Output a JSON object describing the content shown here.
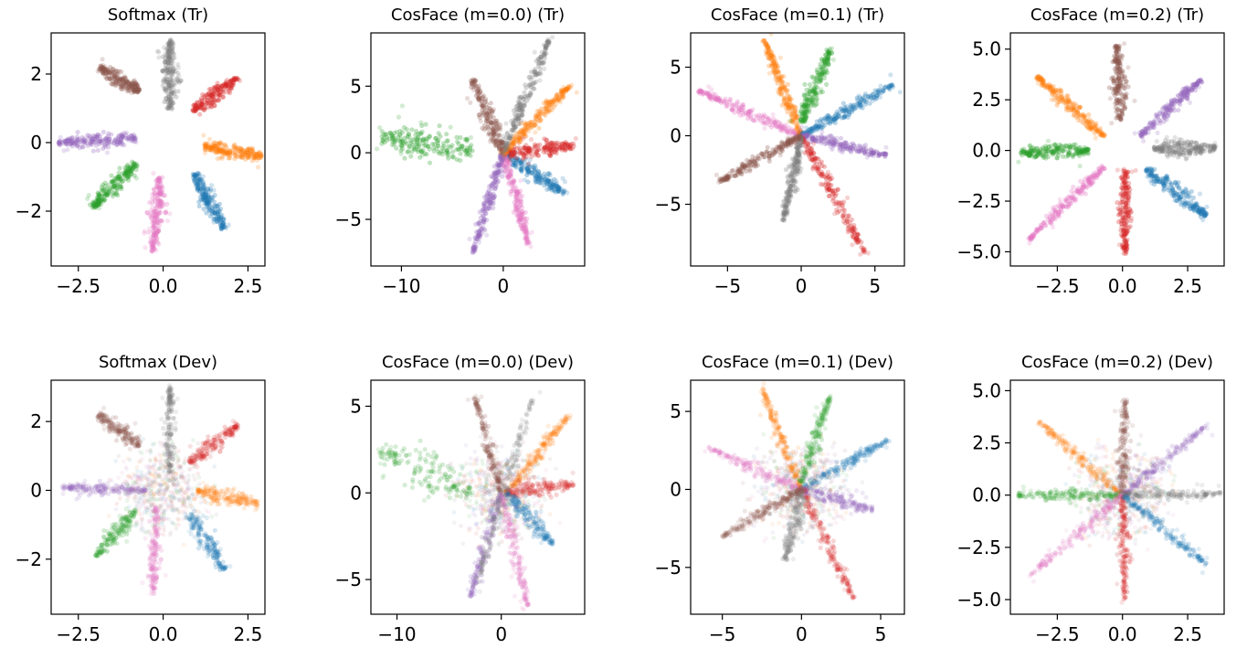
{
  "chart_data": [
    {
      "type": "scatter",
      "title": "Softmax (Tr)",
      "xlim": [
        -3.3,
        3.0
      ],
      "ylim": [
        -3.6,
        3.2
      ],
      "xticks": [
        -2.5,
        0.0,
        2.5
      ],
      "xtick_labels": [
        "−2.5",
        "0.0",
        "2.5"
      ],
      "yticks": [
        -2,
        0,
        2
      ],
      "ytick_labels": [
        "−2",
        "0",
        "2"
      ],
      "grid": false,
      "series": [
        {
          "color": "#1f77b4",
          "values": [
            [
              0.9,
              -0.9
            ],
            [
              1.8,
              -2.5
            ]
          ]
        },
        {
          "color": "#ff7f0e",
          "values": [
            [
              1.2,
              -0.1
            ],
            [
              2.9,
              -0.4
            ]
          ]
        },
        {
          "color": "#2ca02c",
          "values": [
            [
              -0.8,
              -0.6
            ],
            [
              -2.1,
              -1.9
            ]
          ]
        },
        {
          "color": "#d62728",
          "values": [
            [
              0.9,
              0.9
            ],
            [
              2.2,
              1.9
            ]
          ]
        },
        {
          "color": "#9467bd",
          "values": [
            [
              -0.8,
              0.1
            ],
            [
              -3.1,
              0.0
            ]
          ]
        },
        {
          "color": "#8c564b",
          "values": [
            [
              -0.7,
              1.5
            ],
            [
              -1.9,
              2.2
            ]
          ]
        },
        {
          "color": "#e377c2",
          "values": [
            [
              -0.1,
              -1.0
            ],
            [
              -0.3,
              -3.2
            ]
          ]
        },
        {
          "color": "#7f7f7f",
          "values": [
            [
              0.2,
              1.0
            ],
            [
              0.2,
              3.0
            ]
          ]
        }
      ]
    },
    {
      "type": "scatter",
      "title": "CosFace (m=0.0) (Tr)",
      "xlim": [
        -13.0,
        8.0
      ],
      "ylim": [
        -8.5,
        9.0
      ],
      "xticks": [
        -10,
        0
      ],
      "xtick_labels": [
        "−10",
        "0"
      ],
      "yticks": [
        -5,
        0,
        5
      ],
      "ytick_labels": [
        "−5",
        "0",
        "5"
      ],
      "grid": false,
      "series": [
        {
          "color": "#2ca02c",
          "values": [
            [
              -3.0,
              0.3
            ],
            [
              -12.0,
              1.2
            ]
          ]
        },
        {
          "color": "#1f77b4",
          "values": [
            [
              0.0,
              0.0
            ],
            [
              6.0,
              -3.0
            ]
          ]
        },
        {
          "color": "#e377c2",
          "values": [
            [
              0.0,
              0.0
            ],
            [
              2.5,
              -6.8
            ]
          ]
        },
        {
          "color": "#9467bd",
          "values": [
            [
              0.0,
              0.0
            ],
            [
              -3.0,
              -7.5
            ]
          ]
        },
        {
          "color": "#8c564b",
          "values": [
            [
              0.0,
              0.0
            ],
            [
              -3.0,
              5.5
            ]
          ]
        },
        {
          "color": "#d62728",
          "values": [
            [
              0.0,
              0.0
            ],
            [
              7.0,
              0.5
            ]
          ]
        },
        {
          "color": "#ff7f0e",
          "values": [
            [
              0.0,
              0.0
            ],
            [
              6.5,
              5.0
            ]
          ]
        },
        {
          "color": "#7f7f7f",
          "values": [
            [
              0.0,
              0.0
            ],
            [
              4.5,
              8.5
            ]
          ]
        }
      ]
    },
    {
      "type": "scatter",
      "title": "CosFace (m=0.1) (Tr)",
      "xlim": [
        -7.5,
        7.0
      ],
      "ylim": [
        -9.5,
        7.5
      ],
      "xticks": [
        -5,
        0,
        5
      ],
      "xtick_labels": [
        "−5",
        "0",
        "5"
      ],
      "yticks": [
        -5,
        0,
        5
      ],
      "ytick_labels": [
        "−5",
        "0",
        "5"
      ],
      "grid": false,
      "series": [
        {
          "color": "#e377c2",
          "values": [
            [
              0.0,
              0.0
            ],
            [
              -7.0,
              3.3
            ]
          ]
        },
        {
          "color": "#ff7f0e",
          "values": [
            [
              0.0,
              0.0
            ],
            [
              -2.5,
              7.0
            ]
          ]
        },
        {
          "color": "#2ca02c",
          "values": [
            [
              0.0,
              1.0
            ],
            [
              2.0,
              6.3
            ]
          ]
        },
        {
          "color": "#1f77b4",
          "values": [
            [
              0.0,
              0.0
            ],
            [
              6.2,
              3.7
            ]
          ]
        },
        {
          "color": "#9467bd",
          "values": [
            [
              0.0,
              0.0
            ],
            [
              5.8,
              -1.4
            ]
          ]
        },
        {
          "color": "#d62728",
          "values": [
            [
              0.0,
              0.0
            ],
            [
              4.3,
              -8.5
            ]
          ]
        },
        {
          "color": "#7f7f7f",
          "values": [
            [
              0.0,
              0.0
            ],
            [
              -1.2,
              -6.2
            ]
          ]
        },
        {
          "color": "#8c564b",
          "values": [
            [
              0.0,
              0.0
            ],
            [
              -5.5,
              -3.3
            ]
          ]
        }
      ]
    },
    {
      "type": "scatter",
      "title": "CosFace (m=0.2) (Tr)",
      "xlim": [
        -4.3,
        3.9
      ],
      "ylim": [
        -5.7,
        5.8
      ],
      "xticks": [
        -2.5,
        0.0,
        2.5
      ],
      "xtick_labels": [
        "−2.5",
        "0.0",
        "2.5"
      ],
      "yticks": [
        5.0,
        2.5,
        0.0,
        -2.5,
        -5.0
      ],
      "ytick_labels": [
        "5.0",
        "2.5",
        "0.0",
        "−2.5",
        "−5.0"
      ],
      "grid": false,
      "series": [
        {
          "color": "#ff7f0e",
          "values": [
            [
              -0.7,
              0.7
            ],
            [
              -3.3,
              3.7
            ]
          ]
        },
        {
          "color": "#8c564b",
          "values": [
            [
              -0.1,
              1.5
            ],
            [
              -0.2,
              5.2
            ]
          ]
        },
        {
          "color": "#9467bd",
          "values": [
            [
              0.7,
              0.7
            ],
            [
              3.0,
              3.5
            ]
          ]
        },
        {
          "color": "#2ca02c",
          "values": [
            [
              -1.3,
              0.0
            ],
            [
              -3.9,
              -0.1
            ]
          ]
        },
        {
          "color": "#7f7f7f",
          "values": [
            [
              1.2,
              0.1
            ],
            [
              3.6,
              0.1
            ]
          ]
        },
        {
          "color": "#e377c2",
          "values": [
            [
              -0.7,
              -0.8
            ],
            [
              -3.6,
              -4.4
            ]
          ]
        },
        {
          "color": "#d62728",
          "values": [
            [
              0.1,
              -1.0
            ],
            [
              0.1,
              -5.1
            ]
          ]
        },
        {
          "color": "#1f77b4",
          "values": [
            [
              0.9,
              -0.9
            ],
            [
              3.2,
              -3.2
            ]
          ]
        }
      ]
    },
    {
      "type": "scatter",
      "title": "Softmax (Dev)",
      "xlim": [
        -3.3,
        3.0
      ],
      "ylim": [
        -3.6,
        3.2
      ],
      "xticks": [
        -2.5,
        0.0,
        2.5
      ],
      "xtick_labels": [
        "−2.5",
        "0.0",
        "2.5"
      ],
      "yticks": [
        -2,
        0,
        2
      ],
      "ytick_labels": [
        "−2",
        "0",
        "2"
      ],
      "grid": false,
      "series": [
        {
          "color": "#1f77b4",
          "values": [
            [
              0.8,
              -0.7
            ],
            [
              1.8,
              -2.3
            ]
          ]
        },
        {
          "color": "#ff7f0e",
          "values": [
            [
              1.0,
              0.0
            ],
            [
              2.8,
              -0.4
            ]
          ]
        },
        {
          "color": "#2ca02c",
          "values": [
            [
              -0.8,
              -0.6
            ],
            [
              -2.0,
              -1.9
            ]
          ]
        },
        {
          "color": "#d62728",
          "values": [
            [
              0.8,
              0.8
            ],
            [
              2.2,
              1.9
            ]
          ]
        },
        {
          "color": "#9467bd",
          "values": [
            [
              -0.5,
              0.0
            ],
            [
              -3.0,
              0.1
            ]
          ]
        },
        {
          "color": "#8c564b",
          "values": [
            [
              -0.7,
              1.3
            ],
            [
              -1.9,
              2.2
            ]
          ]
        },
        {
          "color": "#e377c2",
          "values": [
            [
              -0.2,
              -0.5
            ],
            [
              -0.3,
              -3.0
            ]
          ]
        },
        {
          "color": "#7f7f7f",
          "values": [
            [
              0.2,
              0.5
            ],
            [
              0.2,
              3.0
            ]
          ]
        }
      ]
    },
    {
      "type": "scatter",
      "title": "CosFace (m=0.0) (Dev)",
      "xlim": [
        -12.5,
        8.0
      ],
      "ylim": [
        -7.0,
        6.5
      ],
      "xticks": [
        -10,
        0
      ],
      "xtick_labels": [
        "−10",
        "0"
      ],
      "yticks": [
        -5,
        0,
        5
      ],
      "ytick_labels": [
        "−5",
        "0",
        "5"
      ],
      "grid": false,
      "series": [
        {
          "color": "#2ca02c",
          "values": [
            [
              -3.0,
              0.0
            ],
            [
              -11.5,
              2.5
            ]
          ]
        },
        {
          "color": "#ff7f0e",
          "values": [
            [
              0.5,
              0.0
            ],
            [
              6.5,
              4.5
            ]
          ]
        },
        {
          "color": "#d62728",
          "values": [
            [
              0.5,
              0.0
            ],
            [
              7.0,
              0.5
            ]
          ]
        },
        {
          "color": "#1f77b4",
          "values": [
            [
              0.5,
              0.0
            ],
            [
              5.0,
              -3.0
            ]
          ]
        },
        {
          "color": "#8c564b",
          "values": [
            [
              0.0,
              0.0
            ],
            [
              -2.5,
              5.5
            ]
          ]
        },
        {
          "color": "#9467bd",
          "values": [
            [
              0.0,
              0.0
            ],
            [
              -3.0,
              -6.0
            ]
          ]
        },
        {
          "color": "#e377c2",
          "values": [
            [
              0.0,
              0.0
            ],
            [
              2.5,
              -6.5
            ]
          ]
        },
        {
          "color": "#7f7f7f",
          "values": [
            [
              -2.5,
              -5.5
            ],
            [
              3.0,
              5.5
            ]
          ]
        }
      ]
    },
    {
      "type": "scatter",
      "title": "CosFace (m=0.1) (Dev)",
      "xlim": [
        -7.0,
        6.5
      ],
      "ylim": [
        -8.0,
        7.0
      ],
      "xticks": [
        -5,
        0,
        5
      ],
      "xtick_labels": [
        "−5",
        "0",
        "5"
      ],
      "yticks": [
        -5,
        0,
        5
      ],
      "ytick_labels": [
        "−5",
        "0",
        "5"
      ],
      "grid": false,
      "series": [
        {
          "color": "#e377c2",
          "values": [
            [
              0.0,
              0.0
            ],
            [
              -6.0,
              2.7
            ]
          ]
        },
        {
          "color": "#ff7f0e",
          "values": [
            [
              0.0,
              0.0
            ],
            [
              -2.5,
              6.5
            ]
          ]
        },
        {
          "color": "#2ca02c",
          "values": [
            [
              0.0,
              0.5
            ],
            [
              1.8,
              6.0
            ]
          ]
        },
        {
          "color": "#1f77b4",
          "values": [
            [
              0.0,
              0.0
            ],
            [
              5.5,
              3.2
            ]
          ]
        },
        {
          "color": "#9467bd",
          "values": [
            [
              0.0,
              0.0
            ],
            [
              4.5,
              -1.3
            ]
          ]
        },
        {
          "color": "#d62728",
          "values": [
            [
              0.0,
              0.0
            ],
            [
              3.3,
              -7.0
            ]
          ]
        },
        {
          "color": "#7f7f7f",
          "values": [
            [
              0.0,
              0.0
            ],
            [
              -1.0,
              -4.5
            ]
          ]
        },
        {
          "color": "#8c564b",
          "values": [
            [
              0.0,
              0.0
            ],
            [
              -5.0,
              -3.0
            ]
          ]
        }
      ]
    },
    {
      "type": "scatter",
      "title": "CosFace (m=0.2) (Dev)",
      "xlim": [
        -4.3,
        3.9
      ],
      "ylim": [
        -5.7,
        5.5
      ],
      "xticks": [
        -2.5,
        0.0,
        2.5
      ],
      "xtick_labels": [
        "−2.5",
        "0.0",
        "2.5"
      ],
      "yticks": [
        5.0,
        2.5,
        0.0,
        -2.5,
        -5.0
      ],
      "ytick_labels": [
        "5.0",
        "2.5",
        "0.0",
        "−2.5",
        "−5.0"
      ],
      "grid": false,
      "series": [
        {
          "color": "#ff7f0e",
          "values": [
            [
              0.0,
              0.0
            ],
            [
              -3.2,
              3.5
            ]
          ]
        },
        {
          "color": "#8c564b",
          "values": [
            [
              0.0,
              0.0
            ],
            [
              0.1,
              4.6
            ]
          ]
        },
        {
          "color": "#9467bd",
          "values": [
            [
              0.0,
              0.0
            ],
            [
              3.2,
              3.3
            ]
          ]
        },
        {
          "color": "#2ca02c",
          "values": [
            [
              0.0,
              0.0
            ],
            [
              -4.0,
              0.0
            ]
          ]
        },
        {
          "color": "#7f7f7f",
          "values": [
            [
              0.0,
              0.0
            ],
            [
              3.8,
              0.1
            ]
          ]
        },
        {
          "color": "#e377c2",
          "values": [
            [
              0.0,
              0.0
            ],
            [
              -3.5,
              -3.8
            ]
          ]
        },
        {
          "color": "#d62728",
          "values": [
            [
              0.0,
              0.0
            ],
            [
              0.1,
              -5.0
            ]
          ]
        },
        {
          "color": "#1f77b4",
          "values": [
            [
              0.0,
              0.0
            ],
            [
              3.2,
              -3.3
            ]
          ]
        }
      ]
    }
  ]
}
